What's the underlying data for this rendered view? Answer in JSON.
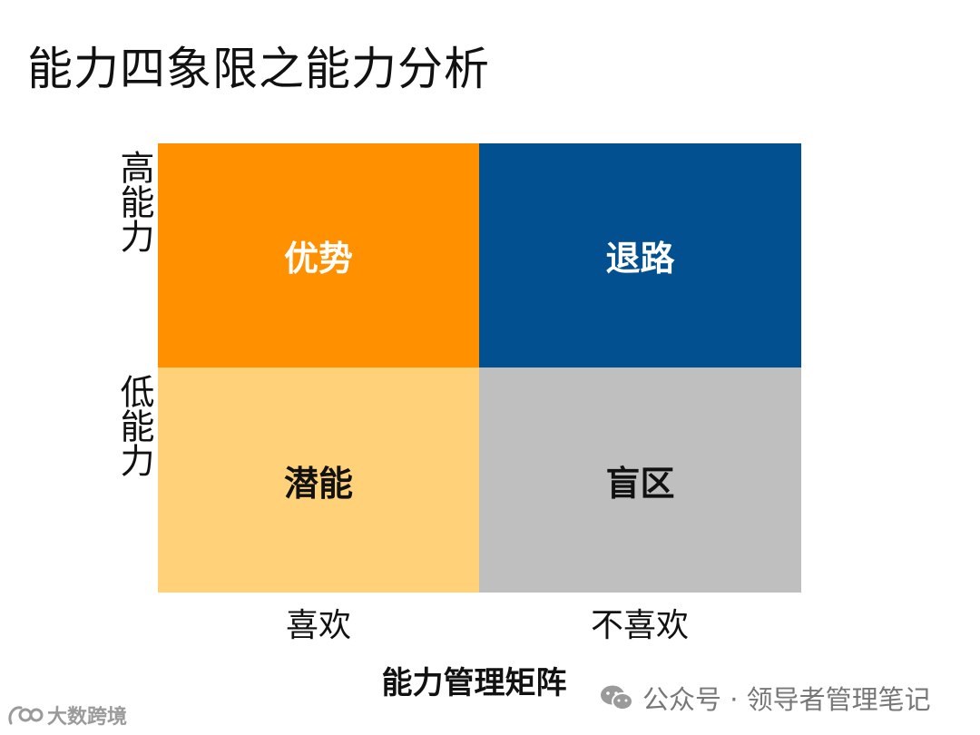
{
  "title": "能力四象限之能力分析",
  "axis": {
    "y_high": "高能力",
    "y_low": "低能力",
    "x_left": "喜欢",
    "x_right": "不喜欢"
  },
  "quadrants": {
    "top_left": {
      "label": "优势",
      "bg": "#FF9100",
      "fg": "#ffffff"
    },
    "top_right": {
      "label": "退路",
      "bg": "#02508F",
      "fg": "#ffffff"
    },
    "bottom_left": {
      "label": "潜能",
      "bg": "#FFD27A",
      "fg": "#111111"
    },
    "bottom_right": {
      "label": "盲区",
      "bg": "#BFBFBF",
      "fg": "#111111"
    }
  },
  "matrix_caption": "能力管理矩阵",
  "source": {
    "text": "公众号 · 领导者管理笔记",
    "icon": "wechat-icon"
  },
  "brand": {
    "text": "大数跨境",
    "icon": "brand-logo-icon"
  }
}
